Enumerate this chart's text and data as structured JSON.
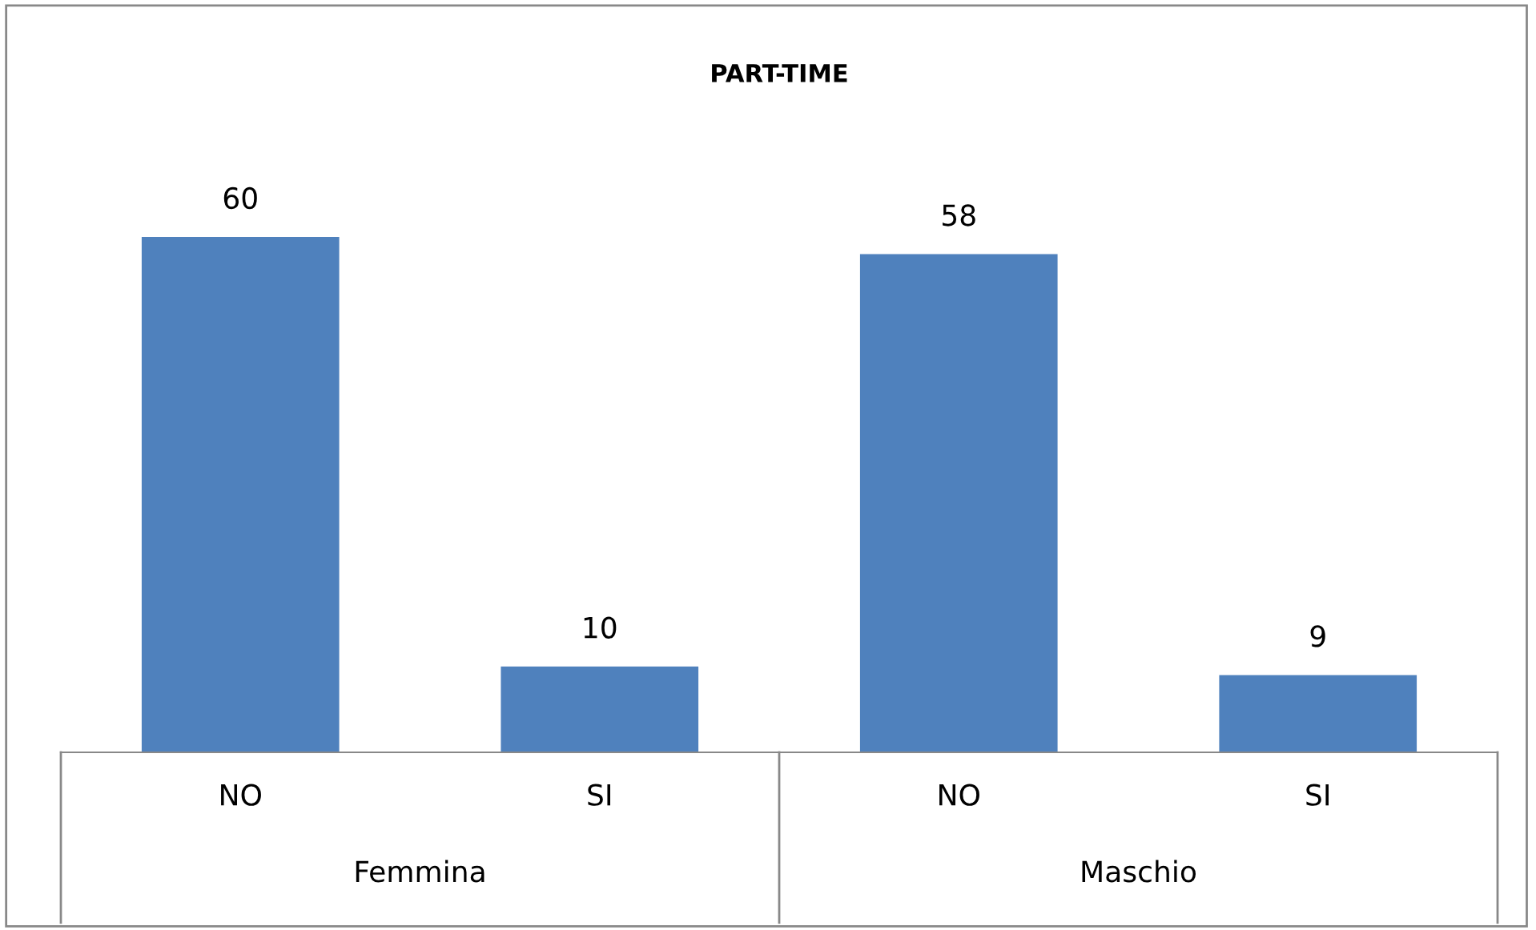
{
  "chart_data": {
    "type": "bar",
    "title": "PART-TIME",
    "categories": [
      "NO",
      "SI",
      "NO",
      "SI"
    ],
    "values": [
      60,
      10,
      58,
      9
    ],
    "color": "#4f81bd",
    "data_labels": true,
    "grid": false,
    "legend": false,
    "annotations": [
      "Femmina",
      "Maschio"
    ]
  }
}
